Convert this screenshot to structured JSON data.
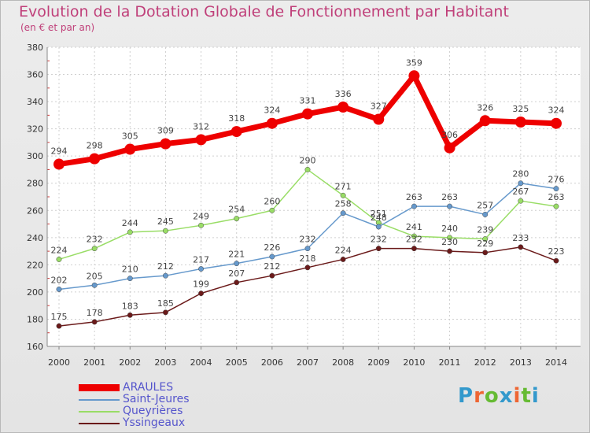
{
  "header": {
    "title": "Evolution de la Dotation Globale de Fonctionnement par Habitant",
    "subtitle": "(en € et par an)"
  },
  "logo": {
    "chars": [
      "P",
      "r",
      "o",
      "x",
      "i",
      "t",
      "i"
    ],
    "colors": [
      "#3399cc",
      "#ee6633",
      "#66bb33",
      "#3399cc",
      "#ee6633",
      "#66bb33",
      "#3399cc"
    ]
  },
  "chart_data": {
    "type": "line",
    "x": [
      2000,
      2001,
      2002,
      2003,
      2004,
      2005,
      2006,
      2007,
      2008,
      2009,
      2010,
      2011,
      2012,
      2013,
      2014
    ],
    "ylim": [
      160,
      380
    ],
    "yticks": [
      160,
      180,
      200,
      220,
      240,
      260,
      280,
      300,
      320,
      340,
      360,
      380
    ],
    "grid": true,
    "legend_position": "bottom-left",
    "series": [
      {
        "name": "ARAULES",
        "color": "#ee0000",
        "values": [
          294,
          298,
          305,
          309,
          312,
          318,
          324,
          331,
          336,
          327,
          359,
          306,
          326,
          325,
          324
        ]
      },
      {
        "name": "Saint-Jeures",
        "color": "#6699cc",
        "values": [
          202,
          205,
          210,
          212,
          217,
          221,
          226,
          232,
          258,
          248,
          263,
          263,
          257,
          280,
          276
        ]
      },
      {
        "name": "Queyrières",
        "color": "#99dd66",
        "values": [
          224,
          232,
          244,
          245,
          249,
          254,
          260,
          290,
          271,
          251,
          241,
          240,
          239,
          267,
          263
        ]
      },
      {
        "name": "Yssingeaux",
        "color": "#6b1a1a",
        "values": [
          175,
          178,
          183,
          185,
          199,
          207,
          212,
          218,
          224,
          232,
          232,
          230,
          229,
          233,
          223
        ]
      }
    ]
  }
}
